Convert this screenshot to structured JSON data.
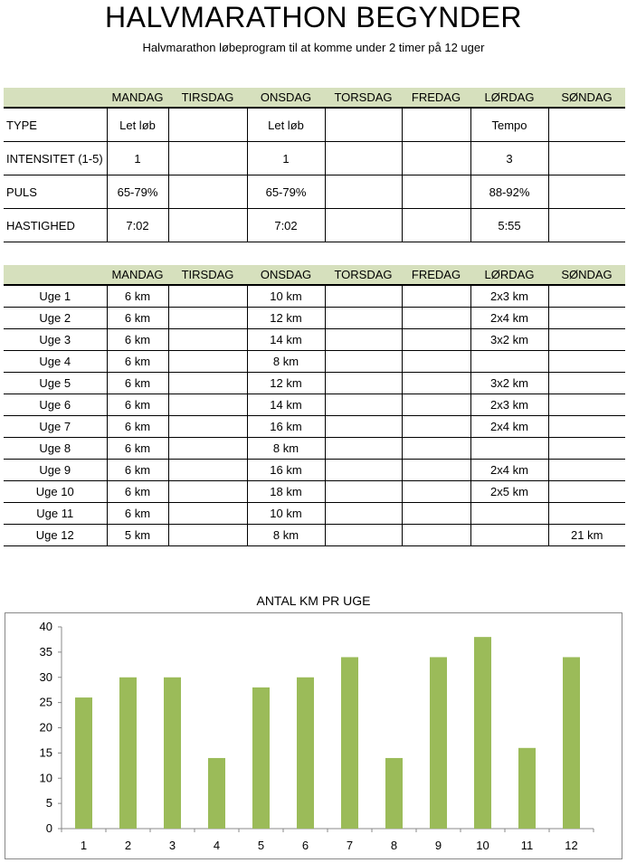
{
  "header": {
    "title": "HALVMARATHON BEGYNDER",
    "subtitle": "Halvmarathon løbeprogram til at komme under 2 timer på 12 uger"
  },
  "days": [
    "MANDAG",
    "TIRSDAG",
    "ONSDAG",
    "TORSDAG",
    "FREDAG",
    "LØRDAG",
    "SØNDAG"
  ],
  "table1": {
    "rows": [
      {
        "label": "TYPE",
        "cells": [
          "Let løb",
          "",
          "Let løb",
          "",
          "",
          "Tempo",
          ""
        ]
      },
      {
        "label": "INTENSITET (1-5)",
        "cells": [
          "1",
          "",
          "1",
          "",
          "",
          "3",
          ""
        ]
      },
      {
        "label": "PULS",
        "cells": [
          "65-79%",
          "",
          "65-79%",
          "",
          "",
          "88-92%",
          ""
        ]
      },
      {
        "label": "HASTIGHED",
        "cells": [
          "7:02",
          "",
          "7:02",
          "",
          "",
          "5:55",
          ""
        ]
      }
    ]
  },
  "table2": {
    "rows": [
      {
        "label": "Uge 1",
        "cells": [
          "6 km",
          "",
          "10 km",
          "",
          "",
          "2x3 km",
          ""
        ]
      },
      {
        "label": "Uge 2",
        "cells": [
          "6 km",
          "",
          "12 km",
          "",
          "",
          "2x4 km",
          ""
        ]
      },
      {
        "label": "Uge 3",
        "cells": [
          "6 km",
          "",
          "14 km",
          "",
          "",
          "3x2 km",
          ""
        ]
      },
      {
        "label": "Uge 4",
        "cells": [
          "6 km",
          "",
          "8 km",
          "",
          "",
          "",
          ""
        ]
      },
      {
        "label": "Uge 5",
        "cells": [
          "6 km",
          "",
          "12 km",
          "",
          "",
          "3x2 km",
          ""
        ]
      },
      {
        "label": "Uge 6",
        "cells": [
          "6 km",
          "",
          "14 km",
          "",
          "",
          "2x3 km",
          ""
        ]
      },
      {
        "label": "Uge 7",
        "cells": [
          "6 km",
          "",
          "16 km",
          "",
          "",
          "2x4 km",
          ""
        ]
      },
      {
        "label": "Uge 8",
        "cells": [
          "6 km",
          "",
          "8 km",
          "",
          "",
          "",
          ""
        ]
      },
      {
        "label": "Uge 9",
        "cells": [
          "6 km",
          "",
          "16 km",
          "",
          "",
          "2x4 km",
          ""
        ]
      },
      {
        "label": "Uge 10",
        "cells": [
          "6 km",
          "",
          "18 km",
          "",
          "",
          "2x5 km",
          ""
        ]
      },
      {
        "label": "Uge 11",
        "cells": [
          "6 km",
          "",
          "10 km",
          "",
          "",
          "",
          ""
        ]
      },
      {
        "label": "Uge 12",
        "cells": [
          "5 km",
          "",
          "8 km",
          "",
          "",
          "",
          "21 km"
        ]
      }
    ]
  },
  "colors": {
    "header_band": "#d6e0bd",
    "bar": "#9bbb59"
  },
  "chart_data": {
    "type": "bar",
    "title": "ANTAL KM PR UGE",
    "categories": [
      "1",
      "2",
      "3",
      "4",
      "5",
      "6",
      "7",
      "8",
      "9",
      "10",
      "11",
      "12"
    ],
    "values": [
      26,
      30,
      30,
      14,
      28,
      30,
      34,
      14,
      34,
      38,
      16,
      34
    ],
    "yticks": [
      "0",
      "5",
      "10",
      "15",
      "20",
      "25",
      "30",
      "35",
      "40"
    ],
    "ylim": [
      0,
      40
    ],
    "grid": false,
    "legend": "none"
  }
}
